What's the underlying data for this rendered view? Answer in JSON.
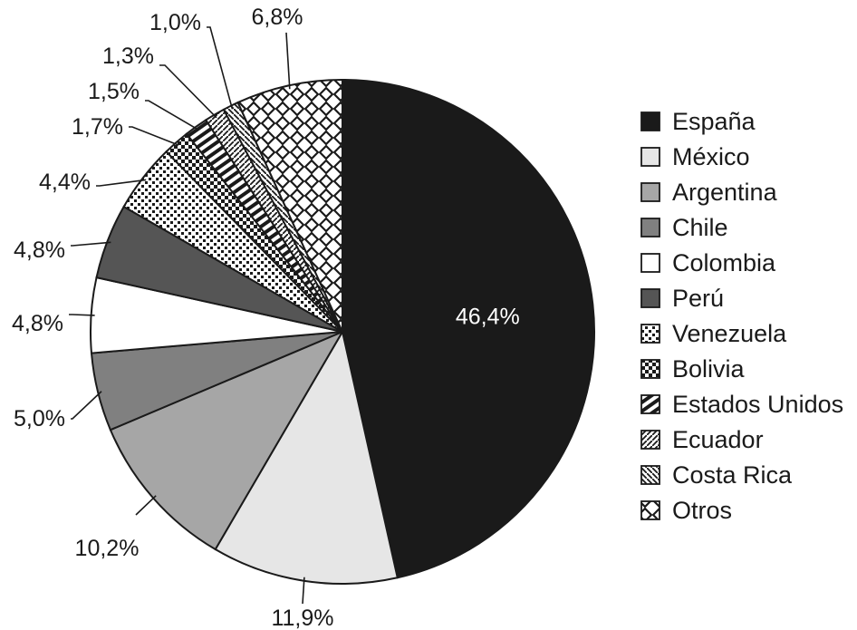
{
  "chart_data": {
    "type": "pie",
    "title": "",
    "legend_position": "right",
    "slices": [
      {
        "name": "España",
        "value": 46.4,
        "label": "46,4%",
        "fill": "solid",
        "color": "#1a1a1a"
      },
      {
        "name": "México",
        "value": 11.9,
        "label": "11,9%",
        "fill": "solid",
        "color": "#e6e6e6"
      },
      {
        "name": "Argentina",
        "value": 10.2,
        "label": "10,2%",
        "fill": "solid",
        "color": "#a6a6a6"
      },
      {
        "name": "Chile",
        "value": 5.0,
        "label": "5,0%",
        "fill": "solid",
        "color": "#808080"
      },
      {
        "name": "Colombia",
        "value": 4.8,
        "label": "4,8%",
        "fill": "solid",
        "color": "#ffffff"
      },
      {
        "name": "Perú",
        "value": 4.8,
        "label": "4,8%",
        "fill": "solid",
        "color": "#555555"
      },
      {
        "name": "Venezuela",
        "value": 4.4,
        "label": "4,4%",
        "fill": "dots",
        "color": "#1a1a1a"
      },
      {
        "name": "Bolivia",
        "value": 1.7,
        "label": "1,7%",
        "fill": "checker",
        "color": "#1a1a1a"
      },
      {
        "name": "Estados Unidos",
        "value": 1.5,
        "label": "1,5%",
        "fill": "stripes",
        "color": "#1a1a1a"
      },
      {
        "name": "Ecuador",
        "value": 1.3,
        "label": "1,3%",
        "fill": "diagonal-left",
        "color": "#1a1a1a"
      },
      {
        "name": "Costa Rica",
        "value": 1.0,
        "label": "1,0%",
        "fill": "diagonal-right",
        "color": "#1a1a1a"
      },
      {
        "name": "Otros",
        "value": 6.8,
        "label": "6,8%",
        "fill": "diamonds",
        "color": "#1a1a1a"
      }
    ]
  }
}
